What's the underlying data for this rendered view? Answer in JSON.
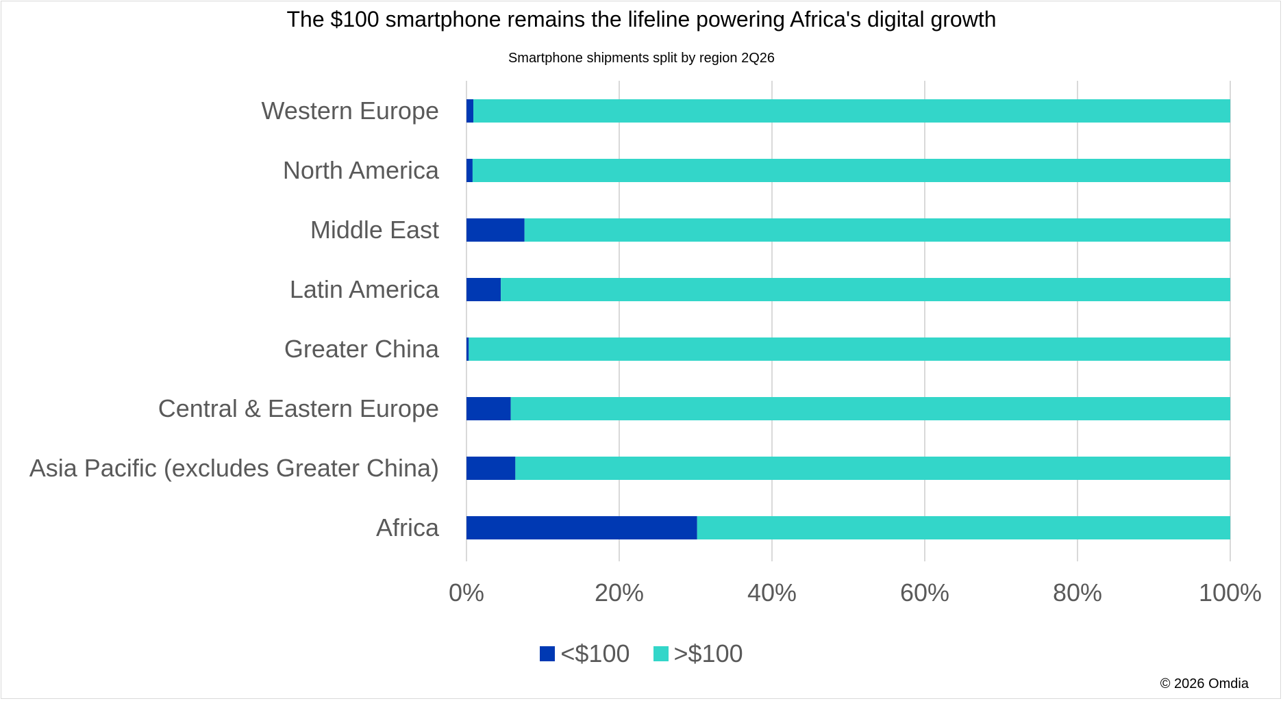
{
  "chart_data": {
    "type": "bar",
    "orientation": "horizontal",
    "stacked": "percent",
    "title": "The $100 smartphone remains the lifeline powering Africa's digital growth",
    "subtitle": "Smartphone shipments split by region 2Q26",
    "xlabel": "",
    "ylabel": "",
    "categories": [
      "Western Europe",
      "North America",
      "Middle East",
      "Latin America",
      "Greater China",
      "Central & Eastern Europe",
      "Asia Pacific (excludes Greater China)",
      "Africa"
    ],
    "series": [
      {
        "name": "<$100",
        "color": "#0039b3",
        "values": [
          0.9,
          0.8,
          7.6,
          4.5,
          0.3,
          5.8,
          6.4,
          30.2
        ]
      },
      {
        "name": ">$100",
        "color": "#33d6c9",
        "values": [
          99.1,
          99.2,
          92.4,
          95.5,
          99.7,
          94.2,
          93.6,
          69.8
        ]
      }
    ],
    "xticks": [
      "0%",
      "20%",
      "40%",
      "60%",
      "80%",
      "100%"
    ],
    "xlim": [
      0,
      100
    ],
    "grid": true,
    "legend_position": "bottom"
  },
  "copyright": "© 2026 Omdia"
}
